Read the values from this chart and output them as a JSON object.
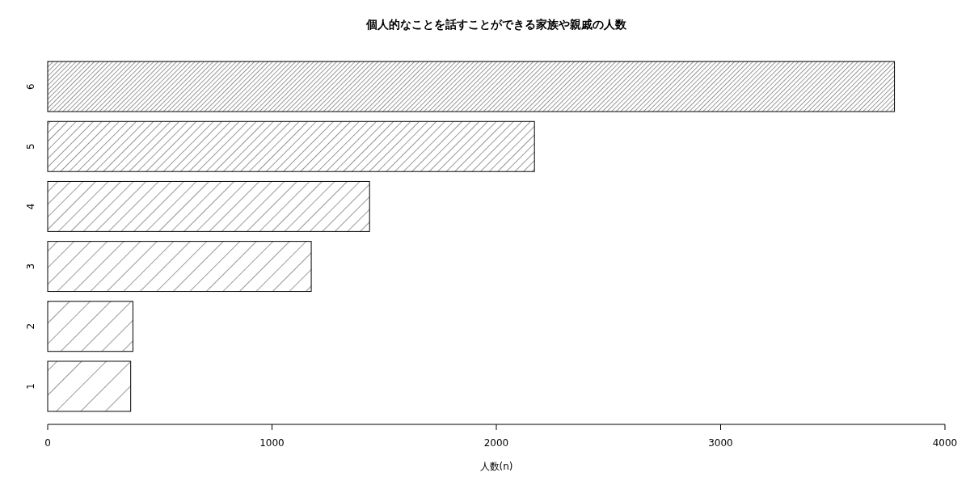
{
  "chart_data": {
    "type": "bar",
    "orientation": "horizontal",
    "title": "個人的なことを話すことができる家族や親戚の人数",
    "xlabel": "人数(n)",
    "categories": [
      "6",
      "5",
      "4",
      "3",
      "2",
      "1"
    ],
    "values": [
      3775,
      2170,
      1435,
      1175,
      380,
      370
    ],
    "color": "#000000",
    "xlim": [
      0,
      4000
    ],
    "xticks": [
      0,
      1000,
      2000,
      3000,
      4000
    ]
  }
}
